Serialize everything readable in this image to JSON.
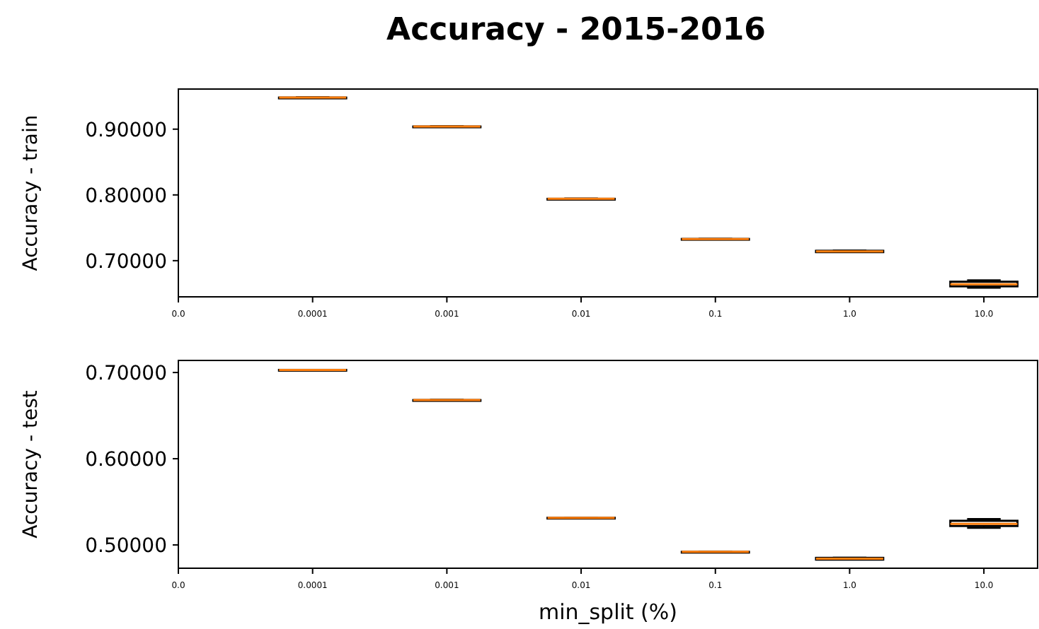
{
  "chart_data": [
    {
      "type": "box",
      "title": "Accuracy - 2015-2016",
      "ylabel": "Accuracy - train",
      "categories": [
        "0.0",
        "0.0001",
        "0.001",
        "0.01",
        "0.1",
        "1.0",
        "10.0"
      ],
      "boxes": [
        null,
        {
          "low": 0.948,
          "q1": 0.948,
          "median": 0.948,
          "q3": 0.948,
          "high": 0.948
        },
        {
          "low": 0.904,
          "q1": 0.904,
          "median": 0.904,
          "q3": 0.904,
          "high": 0.904
        },
        {
          "low": 0.794,
          "q1": 0.794,
          "median": 0.794,
          "q3": 0.794,
          "high": 0.794
        },
        {
          "low": 0.733,
          "q1": 0.733,
          "median": 0.733,
          "q3": 0.733,
          "high": 0.733
        },
        {
          "low": 0.714,
          "q1": 0.713,
          "median": 0.714,
          "q3": 0.715,
          "high": 0.715
        },
        {
          "low": 0.659,
          "q1": 0.661,
          "median": 0.664,
          "q3": 0.668,
          "high": 0.67
        }
      ],
      "ylim": [
        0.645,
        0.961
      ],
      "yticks": [
        {
          "value": 0.7,
          "label": "0.70000"
        },
        {
          "value": 0.8,
          "label": "0.80000"
        },
        {
          "value": 0.9,
          "label": "0.90000"
        }
      ]
    },
    {
      "type": "box",
      "xlabel": "min_split (%)",
      "ylabel": "Accuracy - test",
      "categories": [
        "0.0",
        "0.0001",
        "0.001",
        "0.01",
        "0.1",
        "1.0",
        "10.0"
      ],
      "boxes": [
        null,
        {
          "low": 0.703,
          "q1": 0.703,
          "median": 0.703,
          "q3": 0.703,
          "high": 0.703
        },
        {
          "low": 0.668,
          "q1": 0.668,
          "median": 0.668,
          "q3": 0.668,
          "high": 0.668
        },
        {
          "low": 0.5315,
          "q1": 0.5315,
          "median": 0.5315,
          "q3": 0.5315,
          "high": 0.5315
        },
        {
          "low": 0.492,
          "q1": 0.492,
          "median": 0.492,
          "q3": 0.492,
          "high": 0.492
        },
        {
          "low": 0.484,
          "q1": 0.483,
          "median": 0.484,
          "q3": 0.485,
          "high": 0.485
        },
        {
          "low": 0.52,
          "q1": 0.522,
          "median": 0.5245,
          "q3": 0.528,
          "high": 0.53
        }
      ],
      "ylim": [
        0.473,
        0.714
      ],
      "yticks": [
        {
          "value": 0.5,
          "label": "0.50000"
        },
        {
          "value": 0.6,
          "label": "0.60000"
        },
        {
          "value": 0.7,
          "label": "0.70000"
        }
      ]
    }
  ]
}
